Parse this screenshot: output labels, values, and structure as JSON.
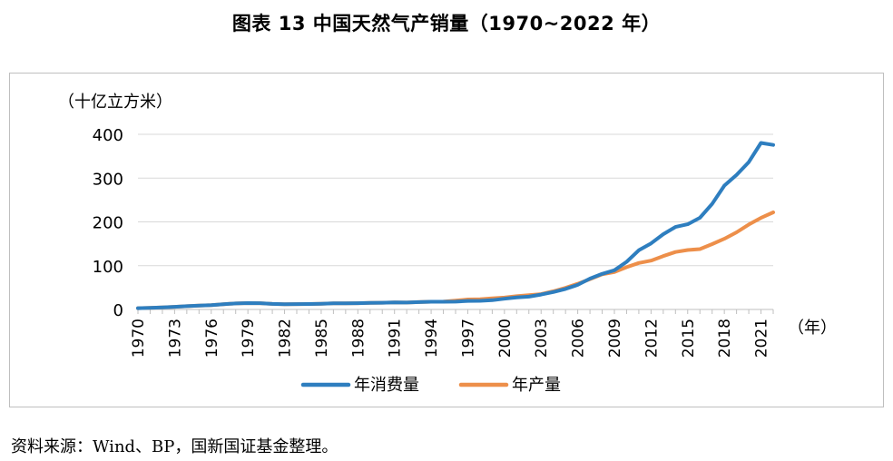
{
  "title": "图表 13  中国天然气产销量（1970~2022 年）",
  "source": "资料来源：Wind、BP，国新国证基金整理。",
  "chart_data": {
    "type": "line",
    "title": "图表 13  中国天然气产销量（1970~2022 年）",
    "ylabel": "（十亿立方米）",
    "xlabel": "（年）",
    "ylim": [
      0,
      400
    ],
    "yticks": [
      0,
      100,
      200,
      300,
      400
    ],
    "xticks": [
      1970,
      1973,
      1976,
      1979,
      1982,
      1985,
      1988,
      1991,
      1994,
      1997,
      2000,
      2003,
      2006,
      2009,
      2012,
      2015,
      2018,
      2021
    ],
    "grid": "horizontal",
    "legend_position": "bottom",
    "x": [
      1970,
      1971,
      1972,
      1973,
      1974,
      1975,
      1976,
      1977,
      1978,
      1979,
      1980,
      1981,
      1982,
      1983,
      1984,
      1985,
      1986,
      1987,
      1988,
      1989,
      1990,
      1991,
      1992,
      1993,
      1994,
      1995,
      1996,
      1997,
      1998,
      1999,
      2000,
      2001,
      2002,
      2003,
      2004,
      2005,
      2006,
      2007,
      2008,
      2009,
      2010,
      2011,
      2012,
      2013,
      2014,
      2015,
      2016,
      2017,
      2018,
      2019,
      2020,
      2021,
      2022
    ],
    "series": [
      {
        "name": "年消费量",
        "color": "#2e7ebf",
        "values": [
          3,
          3.7,
          4.8,
          6,
          7.5,
          8.8,
          10,
          12,
          13.7,
          14.5,
          14.3,
          12.7,
          11.9,
          12.2,
          12.4,
          12.9,
          13.8,
          13.9,
          14.2,
          15,
          15.3,
          15.9,
          15.8,
          16.8,
          17.6,
          17.7,
          17.8,
          19.5,
          19.7,
          21.2,
          24.5,
          27.4,
          29.2,
          33.9,
          39.7,
          46.8,
          56.1,
          70.5,
          81.3,
          89.5,
          108.9,
          135.2,
          150.9,
          171.9,
          188.4,
          194.7,
          209.4,
          241,
          283,
          307.3,
          336.6,
          380.3,
          375.7
        ]
      },
      {
        "name": "年产量",
        "color": "#ed8f4a",
        "values": [
          3,
          3.7,
          4.8,
          6,
          7.5,
          8.8,
          10,
          12,
          13.7,
          14.5,
          14.3,
          12.7,
          11.9,
          12.2,
          12.4,
          12.9,
          13.8,
          13.9,
          14.2,
          15,
          15.3,
          15.9,
          15.8,
          16.8,
          17.6,
          17.9,
          20.1,
          22.7,
          23.3,
          25.2,
          27.2,
          30.3,
          32.7,
          35,
          41.5,
          49.3,
          58.6,
          69.2,
          80.3,
          85.3,
          96.5,
          106.2,
          111.5,
          121.8,
          131.2,
          135.7,
          137.9,
          149.2,
          161.4,
          176.2,
          194,
          209.2,
          221.8
        ]
      }
    ]
  }
}
